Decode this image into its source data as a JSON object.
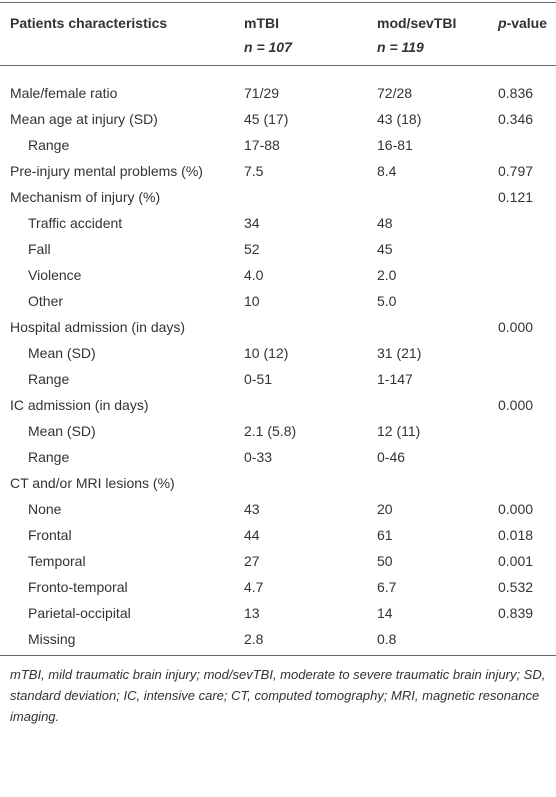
{
  "table": {
    "header": {
      "characteristics": "Patients characteristics",
      "mTBI": {
        "name": "mTBI",
        "n": "n = 107"
      },
      "modsevTBI": {
        "name": "mod/sevTBI",
        "n": "n = 119"
      },
      "p": {
        "italic": "p",
        "rest": "-value"
      }
    },
    "rows": [
      {
        "label": "Male/female ratio",
        "mTBI": "71/29",
        "modsevTBI": "72/28",
        "p": "0.836"
      },
      {
        "label": "Mean age at injury (SD)",
        "mTBI": "45 (17)",
        "modsevTBI": "43 (18)",
        "p": "0.346",
        "sub": [
          {
            "label": "Range",
            "mTBI": "17-88",
            "modsevTBI": "16-81"
          }
        ]
      },
      {
        "label": "Pre-injury mental problems (%)",
        "mTBI": "7.5",
        "modsevTBI": "8.4",
        "p": "0.797"
      },
      {
        "label": "Mechanism of injury (%)",
        "p": "0.121",
        "sub": [
          {
            "label": "Traffic accident",
            "mTBI": "34",
            "modsevTBI": "48"
          },
          {
            "label": "Fall",
            "mTBI": "52",
            "modsevTBI": "45"
          },
          {
            "label": "Violence",
            "mTBI": "4.0",
            "modsevTBI": "2.0"
          },
          {
            "label": "Other",
            "mTBI": "10",
            "modsevTBI": "5.0"
          }
        ]
      },
      {
        "label": "Hospital admission (in days)",
        "p": "0.000",
        "sub": [
          {
            "label": "Mean (SD)",
            "mTBI": "10 (12)",
            "modsevTBI": "31 (21)"
          },
          {
            "label": "Range",
            "mTBI": "0-51",
            "modsevTBI": "1-147"
          }
        ]
      },
      {
        "label": "IC admission (in days)",
        "p": "0.000",
        "sub": [
          {
            "label": "Mean (SD)",
            "mTBI": "2.1 (5.8)",
            "modsevTBI": "12 (11)"
          },
          {
            "label": "Range",
            "mTBI": "0-33",
            "modsevTBI": "0-46"
          }
        ]
      },
      {
        "label": "CT and/or MRI lesions (%)",
        "sub": [
          {
            "label": "None",
            "mTBI": "43",
            "modsevTBI": "20",
            "p": "0.000"
          },
          {
            "label": "Frontal",
            "mTBI": "44",
            "modsevTBI": "61",
            "p": "0.018"
          },
          {
            "label": "Temporal",
            "mTBI": "27",
            "modsevTBI": "50",
            "p": "0.001"
          },
          {
            "label": "Fronto-temporal",
            "mTBI": "4.7",
            "modsevTBI": "6.7",
            "p": "0.532"
          },
          {
            "label": "Parietal-occipital",
            "mTBI": "13",
            "modsevTBI": "14",
            "p": "0.839"
          },
          {
            "label": "Missing",
            "mTBI": "2.8",
            "modsevTBI": "0.8"
          }
        ]
      }
    ],
    "footnote": "mTBI, mild traumatic brain injury; mod/sevTBI, moderate to severe traumatic brain injury; SD, standard deviation; IC, intensive care; CT, computed tomography; MRI, magnetic resonance imaging."
  }
}
